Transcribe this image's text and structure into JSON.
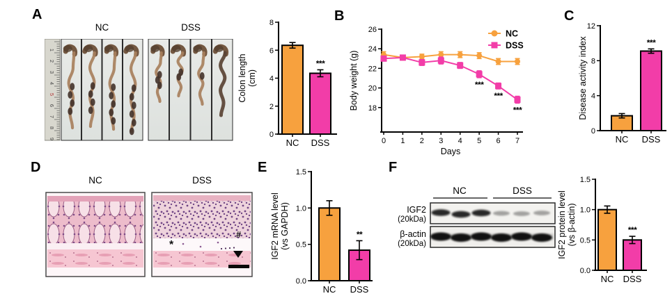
{
  "panels": {
    "a": "A",
    "b": "B",
    "c": "C",
    "d": "D",
    "e": "E",
    "f": "F"
  },
  "groups": {
    "nc": "NC",
    "dss": "DSS"
  },
  "panel_a": {
    "ruler_numbers": [
      "1",
      "2",
      "3",
      "4",
      "5",
      "6",
      "7",
      "8",
      "9"
    ]
  },
  "panel_d": {
    "star": "*",
    "hash": "#"
  },
  "panel_f": {
    "rows": [
      {
        "protein": "IGF2",
        "kda": "(20kDa)"
      },
      {
        "protein": "β-actin",
        "kda": "(20kDa)"
      }
    ]
  },
  "colors": {
    "nc": "#F7A13E",
    "dss": "#F23DA8",
    "axis": "#000000"
  },
  "chart_data": [
    {
      "id": "colon_length",
      "type": "bar",
      "panel": "A",
      "ylabel_lines": [
        "Colon length",
        "(cm)"
      ],
      "categories": [
        "NC",
        "DSS"
      ],
      "values": [
        6.35,
        4.35
      ],
      "errors": [
        0.2,
        0.25
      ],
      "sig": [
        "",
        "***"
      ],
      "colors": [
        "#F7A13E",
        "#F23DA8"
      ],
      "ylim": [
        0,
        8
      ],
      "yticks": [
        0,
        2,
        4,
        6,
        8
      ],
      "tick_decimals": 0
    },
    {
      "id": "body_weight",
      "type": "line",
      "panel": "B",
      "xlabel": "Days",
      "ylabel": "Body weight (g)",
      "x": [
        0,
        1,
        2,
        3,
        4,
        5,
        6,
        7
      ],
      "ylim": [
        15.5,
        26
      ],
      "yticks": [
        18,
        20,
        22,
        24,
        26
      ],
      "legend_position": "top-right",
      "series": [
        {
          "name": "NC",
          "color": "#F7A13E",
          "marker": "circle",
          "values": [
            23.4,
            23.1,
            23.2,
            23.4,
            23.4,
            23.3,
            22.7,
            22.7
          ],
          "errors": [
            0.3,
            0.25,
            0.25,
            0.3,
            0.3,
            0.3,
            0.3,
            0.3
          ]
        },
        {
          "name": "DSS",
          "color": "#F23DA8",
          "marker": "square",
          "values": [
            23.0,
            23.1,
            22.6,
            22.8,
            22.3,
            21.4,
            20.2,
            18.8
          ],
          "errors": [
            0.25,
            0.25,
            0.3,
            0.35,
            0.3,
            0.35,
            0.3,
            0.35
          ],
          "sig_below": {
            "5": "***",
            "6": "***",
            "7": "***"
          }
        }
      ]
    },
    {
      "id": "disease_activity_index",
      "type": "bar",
      "panel": "C",
      "ylabel_lines": [
        "Disease activity index"
      ],
      "categories": [
        "NC",
        "DSS"
      ],
      "values": [
        1.7,
        9.1
      ],
      "errors": [
        0.25,
        0.25
      ],
      "sig": [
        "",
        "***"
      ],
      "colors": [
        "#F7A13E",
        "#F23DA8"
      ],
      "ylim": [
        0,
        12
      ],
      "yticks": [
        0,
        4,
        8,
        12
      ],
      "tick_decimals": 0
    },
    {
      "id": "igf2_mrna",
      "type": "bar",
      "panel": "E",
      "ylabel_lines": [
        "IGF2 mRNA level",
        "(vs GAPDH)"
      ],
      "categories": [
        "NC",
        "DSS"
      ],
      "values": [
        1.0,
        0.42
      ],
      "errors": [
        0.1,
        0.13
      ],
      "sig": [
        "",
        "**"
      ],
      "colors": [
        "#F7A13E",
        "#F23DA8"
      ],
      "ylim": [
        0,
        1.5
      ],
      "yticks": [
        0,
        0.5,
        1,
        1.5
      ],
      "tick_decimals": 1
    },
    {
      "id": "igf2_protein",
      "type": "bar",
      "panel": "F",
      "ylabel_lines": [
        "IGF2 protein level",
        "(vs β-actin)"
      ],
      "categories": [
        "NC",
        "DSS"
      ],
      "values": [
        1.0,
        0.5
      ],
      "errors": [
        0.06,
        0.06
      ],
      "sig": [
        "",
        "***"
      ],
      "colors": [
        "#F7A13E",
        "#F23DA8"
      ],
      "ylim": [
        0,
        1.5
      ],
      "yticks": [
        0,
        0.5,
        1,
        1.5
      ],
      "tick_decimals": 1
    }
  ]
}
